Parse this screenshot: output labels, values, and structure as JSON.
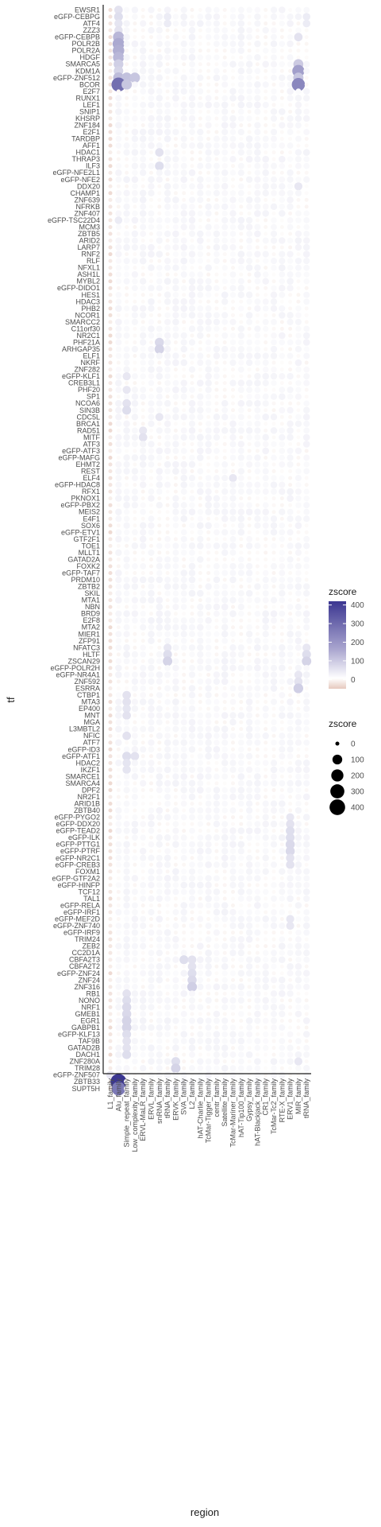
{
  "chart_data": {
    "type": "scatter",
    "subtype": "dot-matrix",
    "xlabel": "region",
    "ylabel": "tf",
    "x_categories": [
      "L1_family",
      "Alu_family",
      "Simple_repeat_family",
      "Low_complexity_family",
      "ERVL-MaLR_family",
      "ERVL_family",
      "snRNA_family",
      "tRNA_family",
      "ERVK_family",
      "SVA_family",
      "L2_family",
      "hAT-Charlie_family",
      "TcMar-Tigger_family",
      "centr_family",
      "Satellite_family",
      "TcMar-Mariner_family",
      "hAT-Tip100_family",
      "Gypsy_family",
      "hAT-Blackjack_family",
      "CR1_family",
      "TcMar-Tc2_family",
      "RTE-X_family",
      "ERV1_family",
      "MIR_family",
      "tRNA_family"
    ],
    "y_categories": [
      "EWSR1",
      "eGFP-CEBPG",
      "ATF4",
      "ZZZ3",
      "eGFP-CEBPB",
      "POLR2B",
      "POLR2A",
      "HDGF",
      "SMARCA5",
      "KDM1A",
      "eGFP-ZNF512",
      "BCOR",
      "E2F7",
      "RUNX1",
      "LEF1",
      "SNIP1",
      "KHSRP",
      "ZNF184",
      "E2F1",
      "TARDBP",
      "AFF1",
      "HDAC1",
      "THRAP3",
      "ILF3",
      "eGFP-NFE2L1",
      "eGFP-NFE2",
      "DDX20",
      "CHAMP1",
      "ZNF639",
      "NFRKB",
      "ZNF407",
      "eGFP-TSC22D4",
      "MCM3",
      "ZBTB5",
      "ARID2",
      "LARP7",
      "RNF2",
      "RLF",
      "NFXL1",
      "ASH1L",
      "MYBL2",
      "eGFP-DIDO1",
      "HES1",
      "HDAC3",
      "PHB2",
      "NCOR1",
      "SMARCC2",
      "C11orf30",
      "NR2C1",
      "PHF21A",
      "ARHGAP35",
      "ELF1",
      "NKRF",
      "ZNF282",
      "eGFP-KLF1",
      "CREB3L1",
      "PHF20",
      "SP1",
      "NCOA6",
      "SIN3B",
      "CDC5L",
      "BRCA1",
      "RAD51",
      "MITF",
      "ATF3",
      "eGFP-ATF3",
      "eGFP-MAFG",
      "EHMT2",
      "REST",
      "ELF4",
      "eGFP-HDAC8",
      "RFX1",
      "PKNOX1",
      "eGFP-PBX2",
      "MEIS2",
      "E4F1",
      "SOX6",
      "eGFP-ETV1",
      "GTF2F1",
      "TOE1",
      "MLLT1",
      "GATAD2A",
      "FOXK2",
      "eGFP-TAF7",
      "PRDM10",
      "ZBTB2",
      "SKIL",
      "MTA1",
      "NBN",
      "BRD9",
      "E2F8",
      "MTA2",
      "MIER1",
      "ZFP91",
      "NFATC3",
      "HLTF",
      "ZSCAN29",
      "eGFP-POLR2H",
      "eGFP-NR4A1",
      "ZNF592",
      "ESRRA",
      "CTBP1",
      "MTA3",
      "EP400",
      "MNT",
      "MGA",
      "L3MBTL2",
      "NFIC",
      "ATF7",
      "eGFP-ID3",
      "eGFP-ATF1",
      "HDAC2",
      "IKZF1",
      "SMARCE1",
      "SMARCA4",
      "DPF2",
      "NR2F1",
      "ARID1B",
      "ZBTB40",
      "eGFP-PYGO2",
      "eGFP-DDX20",
      "eGFP-TEAD2",
      "eGFP-ILK",
      "eGFP-PTTG1",
      "eGFP-PTRF",
      "eGFP-NR2C1",
      "eGFP-CREB3",
      "FOXM1",
      "eGFP-GTF2A2",
      "eGFP-HINFP",
      "TCF12",
      "TAL1",
      "eGFP-RELA",
      "eGFP-IRF1",
      "eGFP-MEF2D",
      "eGFP-ZNF740",
      "eGFP-IRF9",
      "TRIM24",
      "ZEB2",
      "CC2D1A",
      "CBFA2T3",
      "CBFA2T2",
      "eGFP-ZNF24",
      "ZNF24",
      "ZNF316",
      "RB1",
      "NONO",
      "NRF1",
      "GMEB1",
      "EGR1",
      "GABPB1",
      "eGFP-KLF13",
      "TAF9B",
      "GATAD2B",
      "DACH1",
      "ZNF280A",
      "TRIM28",
      "eGFP-ZNF507",
      "ZBTB33",
      "SUPT5H"
    ],
    "color_legend": {
      "title": "zscore",
      "ticks": [
        400,
        300,
        200,
        100,
        0
      ],
      "low": "#e6c9be",
      "mid": "#ffffff",
      "high": "#3b3691",
      "range": [
        -50,
        420
      ]
    },
    "size_legend": {
      "title": "zscore",
      "ticks": [
        0,
        100,
        200,
        300,
        400
      ]
    },
    "points": [
      [
        "EWSR1",
        "Alu_family",
        60
      ],
      [
        "eGFP-CEBPG",
        "Alu_family",
        70
      ],
      [
        "ATF4",
        "Alu_family",
        55
      ],
      [
        "ZZZ3",
        "Alu_family",
        60
      ],
      [
        "eGFP-CEBPB",
        "Alu_family",
        150
      ],
      [
        "POLR2B",
        "Alu_family",
        180
      ],
      [
        "POLR2A",
        "Alu_family",
        170
      ],
      [
        "HDGF",
        "Alu_family",
        150
      ],
      [
        "SMARCA5",
        "Alu_family",
        100
      ],
      [
        "KDM1A",
        "Alu_family",
        90
      ],
      [
        "eGFP-ZNF512",
        "Alu_family",
        140
      ],
      [
        "eGFP-ZNF512",
        "Simple_repeat_family",
        130
      ],
      [
        "eGFP-ZNF512",
        "Low_complexity_family",
        120
      ],
      [
        "BCOR",
        "Alu_family",
        300
      ],
      [
        "BCOR",
        "Simple_repeat_family",
        120
      ],
      [
        "SMARCA5",
        "MIR_family",
        110
      ],
      [
        "KDM1A",
        "MIR_family",
        200
      ],
      [
        "eGFP-ZNF512",
        "MIR_family",
        120
      ],
      [
        "BCOR",
        "MIR_family",
        250
      ],
      [
        "eGFP-CEBPG",
        "tRNA_family",
        40
      ],
      [
        "ATF4",
        "tRNA_family",
        40
      ],
      [
        "eGFP-CEBPB",
        "MIR_family",
        60
      ],
      [
        "HDAC1",
        "snRNA_family",
        60
      ],
      [
        "ILF3",
        "snRNA_family",
        70
      ],
      [
        "DDX20",
        "MIR_family",
        50
      ],
      [
        "eGFP-TSC22D4",
        "Alu_family",
        40
      ],
      [
        "PHF21A",
        "snRNA_family",
        80
      ],
      [
        "ARHGAP35",
        "snRNA_family",
        90
      ],
      [
        "CDC5L",
        "snRNA_family",
        50
      ],
      [
        "RAD51",
        "ERVL-MaLR_family",
        50
      ],
      [
        "MITF",
        "ERVL-MaLR_family",
        60
      ],
      [
        "ELF4",
        "TcMar-Mariner_family",
        50
      ],
      [
        "NCOA6",
        "Simple_repeat_family",
        60
      ],
      [
        "SIN3B",
        "Simple_repeat_family",
        70
      ],
      [
        "PHF20",
        "Simple_repeat_family",
        50
      ],
      [
        "eGFP-KLF1",
        "Simple_repeat_family",
        50
      ],
      [
        "HLTF",
        "tRNA_family",
        70
      ],
      [
        "ZSCAN29",
        "tRNA_family",
        90
      ],
      [
        "NFATC3",
        "tRNA_family",
        50
      ],
      [
        "ESRRA",
        "MIR_family",
        100
      ],
      [
        "ZNF592",
        "MIR_family",
        60
      ],
      [
        "eGFP-NR4A1",
        "MIR_family",
        50
      ],
      [
        "CTBP1",
        "Simple_repeat_family",
        60
      ],
      [
        "MTA3",
        "Simple_repeat_family",
        60
      ],
      [
        "EP400",
        "Simple_repeat_family",
        55
      ],
      [
        "MNT",
        "Simple_repeat_family",
        60
      ],
      [
        "NFIC",
        "Simple_repeat_family",
        60
      ],
      [
        "eGFP-ATF1",
        "Simple_repeat_family",
        70
      ],
      [
        "eGFP-ATF1",
        "Low_complexity_family",
        60
      ],
      [
        "HDAC2",
        "Simple_repeat_family",
        55
      ],
      [
        "IKZF1",
        "Simple_repeat_family",
        55
      ],
      [
        "eGFP-PYGO2",
        "ERV1_family",
        50
      ],
      [
        "eGFP-DDX20",
        "ERV1_family",
        60
      ],
      [
        "eGFP-TEAD2",
        "ERV1_family",
        70
      ],
      [
        "eGFP-ILK",
        "ERV1_family",
        70
      ],
      [
        "eGFP-PTTG1",
        "ERV1_family",
        80
      ],
      [
        "eGFP-PTRF",
        "ERV1_family",
        80
      ],
      [
        "eGFP-NR2C1",
        "ERV1_family",
        60
      ],
      [
        "eGFP-CREB3",
        "ERV1_family",
        60
      ],
      [
        "eGFP-MEF2D",
        "ERV1_family",
        50
      ],
      [
        "eGFP-ZNF740",
        "ERV1_family",
        50
      ],
      [
        "CBFA2T3",
        "L2_family",
        60
      ],
      [
        "CBFA2T3",
        "SVA_family",
        70
      ],
      [
        "CBFA2T2",
        "L2_family",
        60
      ],
      [
        "eGFP-ZNF24",
        "L2_family",
        70
      ],
      [
        "ZNF24",
        "L2_family",
        80
      ],
      [
        "ZNF316",
        "L2_family",
        100
      ],
      [
        "RB1",
        "Simple_repeat_family",
        60
      ],
      [
        "NONO",
        "Simple_repeat_family",
        70
      ],
      [
        "NRF1",
        "Simple_repeat_family",
        80
      ],
      [
        "GMEB1",
        "Simple_repeat_family",
        80
      ],
      [
        "EGR1",
        "Simple_repeat_family",
        90
      ],
      [
        "GABPB1",
        "Simple_repeat_family",
        90
      ],
      [
        "eGFP-KLF13",
        "Simple_repeat_family",
        70
      ],
      [
        "TAF9B",
        "Simple_repeat_family",
        60
      ],
      [
        "GATAD2B",
        "Simple_repeat_family",
        60
      ],
      [
        "DACH1",
        "Simple_repeat_family",
        70
      ],
      [
        "ZNF280A",
        "ERVK_family",
        70
      ],
      [
        "TRIM28",
        "ERVK_family",
        90
      ],
      [
        "ZNF280A",
        "MIR_family",
        50
      ],
      [
        "eGFP-ZNF507",
        "L1_family",
        50
      ],
      [
        "ZBTB33",
        "Alu_family",
        420
      ],
      [
        "SUPT5H",
        "Alu_family",
        280
      ]
    ]
  }
}
